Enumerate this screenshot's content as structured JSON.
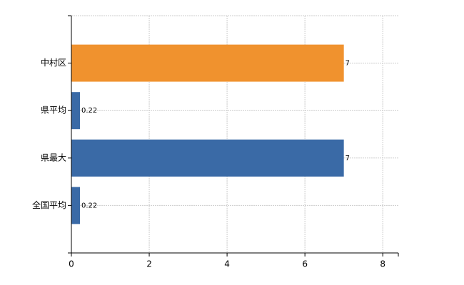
{
  "chart_data": {
    "type": "hbar",
    "categories": [
      "中村区",
      "県平均",
      "県最大",
      "全国平均"
    ],
    "values": [
      7,
      0.22,
      7,
      0.22
    ],
    "colors": [
      "#f0922e",
      "#3a6aa6",
      "#3a6aa6",
      "#3a6aa6"
    ],
    "xlim": [
      0,
      8.4
    ],
    "xticks": [
      0,
      2,
      4,
      6,
      8
    ],
    "grid": true
  }
}
